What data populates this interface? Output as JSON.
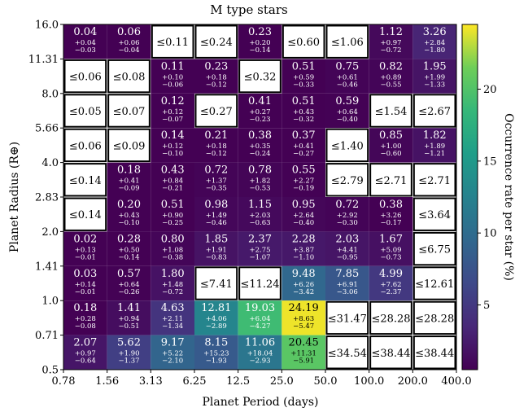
{
  "chart_data": {
    "type": "heatmap",
    "title": "M type stars",
    "xlabel": "Planet Period (days)",
    "ylabel": "Planet Radius (R⊕)",
    "colorbar_label": "Occurrence rate per star (%)",
    "colorbar_ticks": [
      "5",
      "10",
      "15",
      "20"
    ],
    "colorbar_range": [
      0.5,
      24.5
    ],
    "colormap": "viridis",
    "x_ticks": [
      "0.78",
      "1.56",
      "3.13",
      "6.25",
      "12.5",
      "25.0",
      "50.0",
      "100.0",
      "200.0",
      "400.0"
    ],
    "y_ticks": [
      "16.0",
      "11.31",
      "8.0",
      "5.66",
      "4.0",
      "2.83",
      "2.0",
      "1.41",
      "1.0",
      "0.71",
      "0.5"
    ],
    "rows": [
      [
        {
          "v": "0.04",
          "p": "+0.04",
          "m": "−0.03",
          "c": 0.04
        },
        {
          "v": "0.06",
          "p": "+0.06",
          "m": "−0.04",
          "c": 0.06
        },
        {
          "u": "≤0.11"
        },
        {
          "u": "≤0.24"
        },
        {
          "v": "0.23",
          "p": "+0.20",
          "m": "−0.14",
          "c": 0.23
        },
        {
          "u": "≤0.60"
        },
        {
          "u": "≤1.06"
        },
        {
          "v": "1.12",
          "p": "+0.97",
          "m": "−0.72",
          "c": 1.12
        },
        {
          "v": "3.26",
          "p": "+2.84",
          "m": "−1.80",
          "c": 3.26
        }
      ],
      [
        {
          "u": "≤0.06"
        },
        {
          "u": "≤0.08"
        },
        {
          "v": "0.11",
          "p": "+0.10",
          "m": "−0.06",
          "c": 0.11
        },
        {
          "v": "0.23",
          "p": "+0.18",
          "m": "−0.12",
          "c": 0.23
        },
        {
          "u": "≤0.32"
        },
        {
          "v": "0.51",
          "p": "+0.59",
          "m": "−0.33",
          "c": 0.51
        },
        {
          "v": "0.75",
          "p": "+0.61",
          "m": "−0.46",
          "c": 0.75
        },
        {
          "v": "0.82",
          "p": "+0.89",
          "m": "−0.55",
          "c": 0.82
        },
        {
          "v": "1.95",
          "p": "+1.99",
          "m": "−1.33",
          "c": 1.95
        }
      ],
      [
        {
          "u": "≤0.05"
        },
        {
          "u": "≤0.07"
        },
        {
          "v": "0.12",
          "p": "+0.12",
          "m": "−0.07",
          "c": 0.12
        },
        {
          "u": "≤0.27"
        },
        {
          "v": "0.41",
          "p": "+0.27",
          "m": "−0.23",
          "c": 0.41
        },
        {
          "v": "0.51",
          "p": "+0.43",
          "m": "−0.32",
          "c": 0.51
        },
        {
          "v": "0.59",
          "p": "+0.64",
          "m": "−0.40",
          "c": 0.59
        },
        {
          "u": "≤1.54"
        },
        {
          "u": "≤2.67"
        }
      ],
      [
        {
          "u": "≤0.06"
        },
        {
          "u": "≤0.09"
        },
        {
          "v": "0.14",
          "p": "+0.12",
          "m": "−0.10",
          "c": 0.14
        },
        {
          "v": "0.21",
          "p": "+0.18",
          "m": "−0.12",
          "c": 0.21
        },
        {
          "v": "0.38",
          "p": "+0.35",
          "m": "−0.24",
          "c": 0.38
        },
        {
          "v": "0.37",
          "p": "+0.41",
          "m": "−0.27",
          "c": 0.37
        },
        {
          "u": "≤1.40"
        },
        {
          "v": "0.85",
          "p": "+1.00",
          "m": "−0.60",
          "c": 0.85
        },
        {
          "v": "1.82",
          "p": "+1.89",
          "m": "−1.21",
          "c": 1.82
        }
      ],
      [
        {
          "u": "≤0.14"
        },
        {
          "v": "0.18",
          "p": "+0.41",
          "m": "−0.09",
          "c": 0.18
        },
        {
          "v": "0.43",
          "p": "+0.84",
          "m": "−0.21",
          "c": 0.43
        },
        {
          "v": "0.72",
          "p": "+1.37",
          "m": "−0.35",
          "c": 0.72
        },
        {
          "v": "0.78",
          "p": "+1.82",
          "m": "−0.53",
          "c": 0.78
        },
        {
          "v": "0.55",
          "p": "+2.27",
          "m": "−0.19",
          "c": 0.55
        },
        {
          "u": "≤2.79"
        },
        {
          "u": "≤2.71"
        },
        {
          "u": "≤2.71"
        }
      ],
      [
        {
          "u": "≤0.14"
        },
        {
          "v": "0.20",
          "p": "+0.43",
          "m": "−0.10",
          "c": 0.2
        },
        {
          "v": "0.51",
          "p": "+0.90",
          "m": "−0.25",
          "c": 0.51
        },
        {
          "v": "0.98",
          "p": "+1.49",
          "m": "−0.46",
          "c": 0.98
        },
        {
          "v": "1.15",
          "p": "+2.03",
          "m": "−0.63",
          "c": 1.15
        },
        {
          "v": "0.95",
          "p": "+2.64",
          "m": "−0.40",
          "c": 0.95
        },
        {
          "v": "0.72",
          "p": "+2.92",
          "m": "−0.30",
          "c": 0.72
        },
        {
          "v": "0.38",
          "p": "+3.26",
          "m": "−0.17",
          "c": 0.38
        },
        {
          "u": "≤3.64"
        }
      ],
      [
        {
          "v": "0.02",
          "p": "+0.13",
          "m": "−0.01",
          "c": 0.02
        },
        {
          "v": "0.28",
          "p": "+0.50",
          "m": "−0.14",
          "c": 0.28
        },
        {
          "v": "0.80",
          "p": "+1.08",
          "m": "−0.38",
          "c": 0.8
        },
        {
          "v": "1.85",
          "p": "+1.91",
          "m": "−0.83",
          "c": 1.85
        },
        {
          "v": "2.37",
          "p": "+2.75",
          "m": "−1.07",
          "c": 2.37
        },
        {
          "v": "2.28",
          "p": "+3.87",
          "m": "−1.10",
          "c": 2.28
        },
        {
          "v": "2.03",
          "p": "+4.41",
          "m": "−0.95",
          "c": 2.03
        },
        {
          "v": "1.67",
          "p": "+5.09",
          "m": "−0.73",
          "c": 1.67
        },
        {
          "u": "≤6.75"
        }
      ],
      [
        {
          "v": "0.03",
          "p": "+0.14",
          "m": "−0.01",
          "c": 0.03
        },
        {
          "v": "0.57",
          "p": "+0.64",
          "m": "−0.26",
          "c": 0.57
        },
        {
          "v": "1.80",
          "p": "+1.48",
          "m": "−0.72",
          "c": 1.8
        },
        {
          "u": "≤7.41"
        },
        {
          "u": "≤11.24"
        },
        {
          "v": "9.48",
          "p": "+6.26",
          "m": "−3.42",
          "c": 9.48
        },
        {
          "v": "7.85",
          "p": "+6.91",
          "m": "−3.06",
          "c": 7.85
        },
        {
          "v": "4.99",
          "p": "+7.62",
          "m": "−2.37",
          "c": 4.99
        },
        {
          "u": "≤12.61"
        }
      ],
      [
        {
          "v": "0.18",
          "p": "+0.28",
          "m": "−0.08",
          "c": 0.18
        },
        {
          "v": "1.41",
          "p": "+0.94",
          "m": "−0.51",
          "c": 1.41
        },
        {
          "v": "4.63",
          "p": "+2.11",
          "m": "−1.34",
          "c": 4.63
        },
        {
          "v": "12.81",
          "p": "+4.06",
          "m": "−2.89",
          "c": 12.81
        },
        {
          "v": "19.03",
          "p": "+6.04",
          "m": "−4.27",
          "c": 19.03
        },
        {
          "v": "24.19",
          "p": "+8.63",
          "m": "−5.47",
          "c": 24.19
        },
        {
          "u": "≤31.47"
        },
        {
          "u": "≤28.28"
        },
        {
          "u": "≤28.28"
        }
      ],
      [
        {
          "v": "2.07",
          "p": "+0.97",
          "m": "−0.64",
          "c": 2.07
        },
        {
          "v": "5.62",
          "p": "+1.90",
          "m": "−1.37",
          "c": 5.62
        },
        {
          "v": "9.17",
          "p": "+5.22",
          "m": "−2.10",
          "c": 9.17
        },
        {
          "v": "8.15",
          "p": "+15.23",
          "m": "−1.93",
          "c": 8.15
        },
        {
          "v": "11.06",
          "p": "+18.04",
          "m": "−2.93",
          "c": 11.06
        },
        {
          "v": "20.45",
          "p": "+11.31",
          "m": "−5.91",
          "c": 20.45
        },
        {
          "u": "≤34.54"
        },
        {
          "u": "≤38.44"
        },
        {
          "u": "≤38.44"
        }
      ]
    ]
  }
}
